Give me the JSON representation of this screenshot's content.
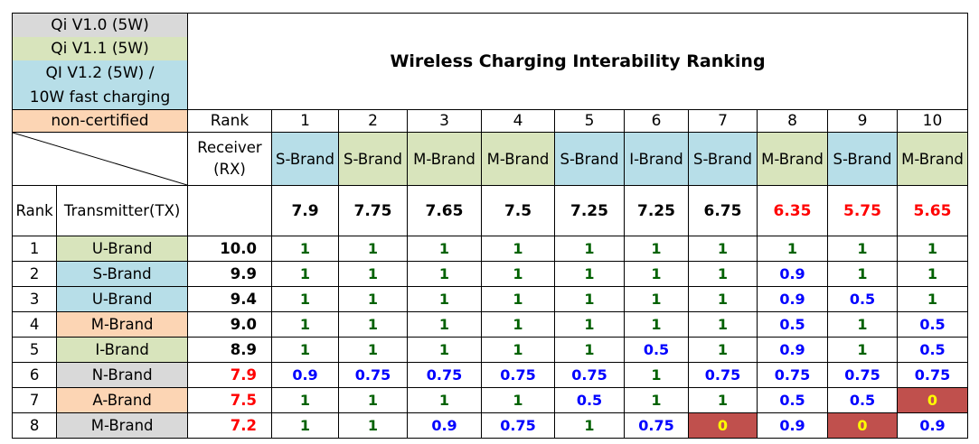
{
  "title": "Wireless Charging Interability Ranking",
  "colors": {
    "qi10": "#d9d9d9",
    "qi11": "#d8e4bc",
    "qi12": "#b7dee8",
    "noncert": "#fcd5b4",
    "green_text": "#006100",
    "blue_text": "#0000ff",
    "red_text": "#ff0000",
    "zero_bg": "#c0504d",
    "zero_text": "#ffff00"
  },
  "legend": [
    {
      "label": "Qi V1.0 (5W)",
      "cat": "qi10"
    },
    {
      "label": "Qi V1.1 (5W)",
      "cat": "qi11"
    },
    {
      "label": "QI V1.2 (5W) /",
      "cat": "qi12"
    },
    {
      "label": "10W fast charging",
      "cat": "qi12"
    },
    {
      "label": "non-certified",
      "cat": "noncert"
    }
  ],
  "labels": {
    "rank": "Rank",
    "receiver_line1": "Receiver",
    "receiver_line2": "(RX)",
    "transmitter": "Transmitter(TX)"
  },
  "chart_data": {
    "type": "table",
    "title": "Wireless Charging Interability Ranking",
    "receivers": [
      {
        "rank": "1",
        "name": "S-Brand",
        "cat": "qi12",
        "score": "7.9",
        "score_color": "black"
      },
      {
        "rank": "2",
        "name": "S-Brand",
        "cat": "qi11",
        "score": "7.75",
        "score_color": "black"
      },
      {
        "rank": "3",
        "name": "M-Brand",
        "cat": "qi11",
        "score": "7.65",
        "score_color": "black"
      },
      {
        "rank": "4",
        "name": "M-Brand",
        "cat": "qi11",
        "score": "7.5",
        "score_color": "black"
      },
      {
        "rank": "5",
        "name": "S-Brand",
        "cat": "qi12",
        "score": "7.25",
        "score_color": "black"
      },
      {
        "rank": "6",
        "name": "I-Brand",
        "cat": "qi12",
        "score": "7.25",
        "score_color": "black"
      },
      {
        "rank": "7",
        "name": "S-Brand",
        "cat": "qi12",
        "score": "6.75",
        "score_color": "black"
      },
      {
        "rank": "8",
        "name": "M-Brand",
        "cat": "qi11",
        "score": "6.35",
        "score_color": "red"
      },
      {
        "rank": "9",
        "name": "S-Brand",
        "cat": "qi12",
        "score": "5.75",
        "score_color": "red"
      },
      {
        "rank": "10",
        "name": "M-Brand",
        "cat": "qi11",
        "score": "5.65",
        "score_color": "red"
      }
    ],
    "transmitters": [
      {
        "rank": "1",
        "name": "U-Brand",
        "cat": "qi11",
        "score": "10.0",
        "score_color": "black",
        "values": [
          "1",
          "1",
          "1",
          "1",
          "1",
          "1",
          "1",
          "1",
          "1",
          "1"
        ]
      },
      {
        "rank": "2",
        "name": "S-Brand",
        "cat": "qi12",
        "score": "9.9",
        "score_color": "black",
        "values": [
          "1",
          "1",
          "1",
          "1",
          "1",
          "1",
          "1",
          "0.9",
          "1",
          "1"
        ]
      },
      {
        "rank": "3",
        "name": "U-Brand",
        "cat": "qi12",
        "score": "9.4",
        "score_color": "black",
        "values": [
          "1",
          "1",
          "1",
          "1",
          "1",
          "1",
          "1",
          "0.9",
          "0.5",
          "1"
        ]
      },
      {
        "rank": "4",
        "name": "M-Brand",
        "cat": "noncert",
        "score": "9.0",
        "score_color": "black",
        "values": [
          "1",
          "1",
          "1",
          "1",
          "1",
          "1",
          "1",
          "0.5",
          "1",
          "0.5"
        ]
      },
      {
        "rank": "5",
        "name": "I-Brand",
        "cat": "qi11",
        "score": "8.9",
        "score_color": "black",
        "values": [
          "1",
          "1",
          "1",
          "1",
          "1",
          "0.5",
          "1",
          "0.9",
          "1",
          "0.5"
        ]
      },
      {
        "rank": "6",
        "name": "N-Brand",
        "cat": "qi10",
        "score": "7.9",
        "score_color": "red",
        "values": [
          "0.9",
          "0.75",
          "0.75",
          "0.75",
          "0.75",
          "1",
          "0.75",
          "0.75",
          "0.75",
          "0.75"
        ]
      },
      {
        "rank": "7",
        "name": "A-Brand",
        "cat": "noncert",
        "score": "7.5",
        "score_color": "red",
        "values": [
          "1",
          "1",
          "1",
          "1",
          "0.5",
          "1",
          "1",
          "0.5",
          "0.5",
          "0"
        ]
      },
      {
        "rank": "8",
        "name": "M-Brand",
        "cat": "qi10",
        "score": "7.2",
        "score_color": "red",
        "values": [
          "1",
          "1",
          "0.9",
          "0.75",
          "1",
          "0.75",
          "0",
          "0.9",
          "0",
          "0.9"
        ]
      }
    ]
  }
}
